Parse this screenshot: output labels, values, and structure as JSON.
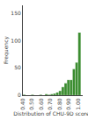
{
  "chart_data": {
    "type": "histogram",
    "xlabel": "Distribution of CHU-9D scores",
    "ylabel": "Frequency",
    "bins": [
      0.4,
      0.43,
      0.46,
      0.49,
      0.52,
      0.55,
      0.58,
      0.61,
      0.64,
      0.67,
      0.7,
      0.73,
      0.76,
      0.79,
      0.82,
      0.85,
      0.88,
      0.91,
      0.94,
      0.97,
      1.0,
      1.03
    ],
    "values": [
      1,
      0,
      0,
      1,
      0,
      0,
      1,
      0,
      2,
      1,
      2,
      3,
      5,
      8,
      15,
      22,
      28,
      28,
      48,
      60,
      115
    ],
    "color": "#3a8c2f",
    "xlim": [
      0.4,
      1.05
    ],
    "ylim": [
      0,
      165
    ],
    "xticks": [
      {
        "value": 0.4,
        "label": "0.40"
      },
      {
        "value": 0.5,
        "label": "0.50"
      },
      {
        "value": 0.6,
        "label": "0.60"
      },
      {
        "value": 0.7,
        "label": "0.70"
      },
      {
        "value": 0.8,
        "label": "0.80"
      },
      {
        "value": 0.9,
        "label": "0.90"
      },
      {
        "value": 1.0,
        "label": "1.00"
      }
    ],
    "yticks": [
      0,
      50,
      100,
      150
    ],
    "grid": false
  }
}
